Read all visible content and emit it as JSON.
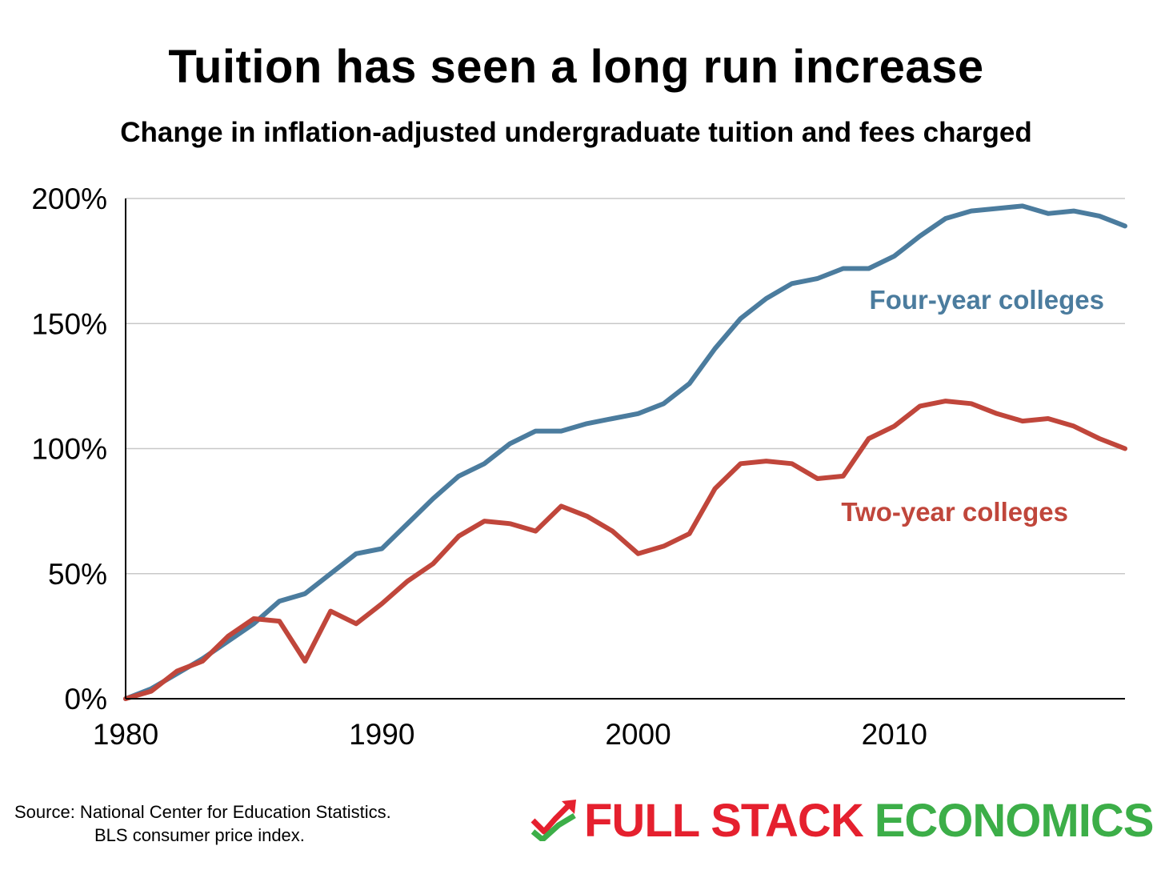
{
  "chart_data": {
    "type": "line",
    "title": "Tuition has seen a long run increase",
    "subtitle": "Change in inflation-adjusted undergraduate tuition and fees charged",
    "xlim": [
      1980,
      2019
    ],
    "ylim": [
      0,
      200
    ],
    "x_ticks": [
      1980,
      1990,
      2000,
      2010
    ],
    "y_ticks": [
      {
        "value": 0,
        "label": "0%"
      },
      {
        "value": 50,
        "label": "50%"
      },
      {
        "value": 100,
        "label": "100%"
      },
      {
        "value": 150,
        "label": "150%"
      },
      {
        "value": 200,
        "label": "200%"
      }
    ],
    "grid": "horizontal",
    "x": [
      1980,
      1981,
      1982,
      1983,
      1984,
      1985,
      1986,
      1987,
      1988,
      1989,
      1990,
      1991,
      1992,
      1993,
      1994,
      1995,
      1996,
      1997,
      1998,
      1999,
      2000,
      2001,
      2002,
      2003,
      2004,
      2005,
      2006,
      2007,
      2008,
      2009,
      2010,
      2011,
      2012,
      2013,
      2014,
      2015,
      2016,
      2017,
      2018,
      2019
    ],
    "series": [
      {
        "name": "Four-year colleges",
        "color": "#4b7c9e",
        "values": [
          0,
          4,
          10,
          16,
          23,
          30,
          39,
          42,
          50,
          58,
          60,
          70,
          80,
          89,
          94,
          102,
          107,
          107,
          110,
          112,
          114,
          118,
          126,
          140,
          152,
          160,
          166,
          168,
          172,
          172,
          177,
          185,
          192,
          195,
          196,
          197,
          194,
          195,
          193,
          189
        ]
      },
      {
        "name": "Two-year colleges",
        "color": "#c0463b",
        "values": [
          0,
          3,
          11,
          15,
          25,
          32,
          31,
          15,
          35,
          30,
          38,
          47,
          54,
          65,
          71,
          70,
          67,
          77,
          73,
          67,
          58,
          61,
          66,
          84,
          94,
          95,
          94,
          88,
          89,
          104,
          109,
          117,
          119,
          118,
          114,
          111,
          112,
          109,
          104,
          100
        ]
      }
    ]
  },
  "source": {
    "line1": "Source: National Center for Education Statistics.",
    "line2": "BLS consumer price index."
  },
  "logo": {
    "word1": "FULL STACK",
    "word2": "ECONOMICS",
    "red": "#e5202e",
    "green": "#3cae48"
  }
}
